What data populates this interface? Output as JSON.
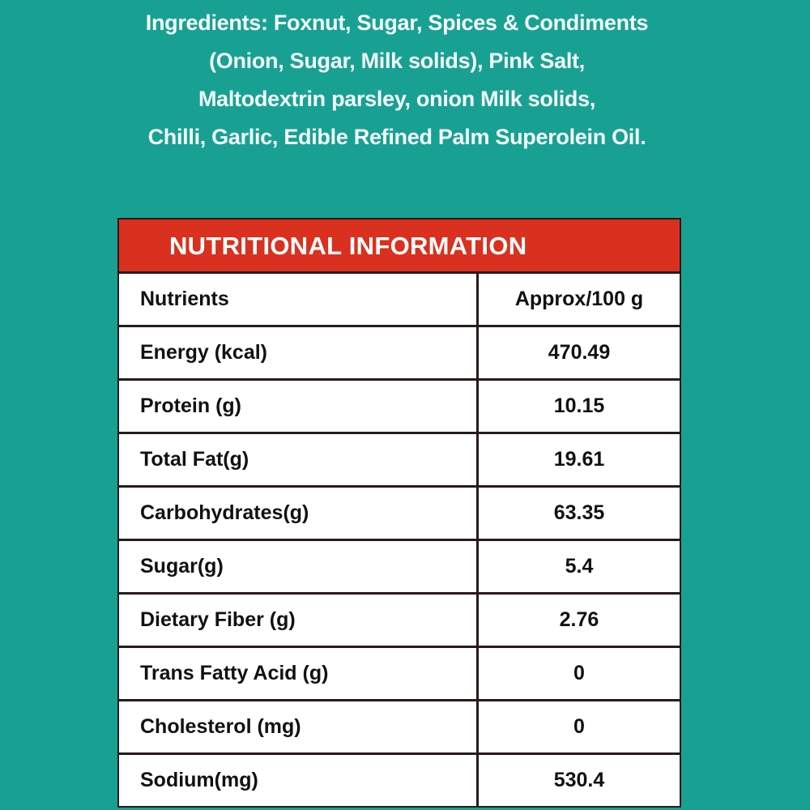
{
  "ingredients": {
    "lines": [
      "Ingredients: Foxnut, Sugar, Spices & Condiments",
      "(Onion, Sugar, Milk solids), Pink Salt,",
      "Maltodextrin parsley, onion Milk solids,",
      "Chilli, Garlic, Edible Refined Palm Superolein Oil."
    ]
  },
  "table": {
    "title": "NUTRITIONAL INFORMATION",
    "header": [
      "Nutrients",
      "Approx/100 g"
    ],
    "rows": [
      [
        "Energy (kcal)",
        "470.49"
      ],
      [
        "Protein (g)",
        "10.15"
      ],
      [
        "Total Fat(g)",
        "19.61"
      ],
      [
        "Carbohydrates(g)",
        "63.35"
      ],
      [
        "Sugar(g)",
        "5.4"
      ],
      [
        "Dietary Fiber (g)",
        "2.76"
      ],
      [
        "Trans Fatty Acid (g)",
        "0"
      ],
      [
        "Cholesterol (mg)",
        "0"
      ],
      [
        "Sodium(mg)",
        "530.4"
      ]
    ]
  },
  "colors": {
    "background": "#18a193",
    "title_bar": "#d9301f"
  }
}
